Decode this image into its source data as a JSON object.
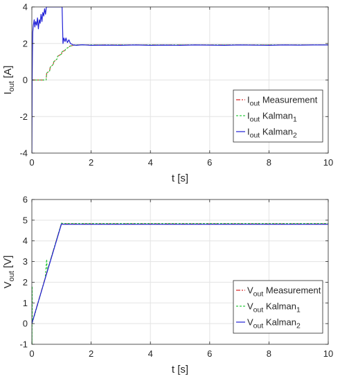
{
  "chart_data": [
    {
      "type": "line",
      "title": "",
      "xlabel": "t [s]",
      "ylabel": "I_out [A]",
      "xlim": [
        0,
        10
      ],
      "ylim": [
        -4,
        4
      ],
      "xticks": [
        0,
        2,
        4,
        6,
        8,
        10
      ],
      "yticks": [
        -4,
        -2,
        0,
        2,
        4
      ],
      "grid": true,
      "legend_position": "bottom-right",
      "series": [
        {
          "name": "I_out Measurement",
          "color": "#d62728",
          "dash": "6,2,2,2",
          "x": [
            0,
            0.48,
            0.5,
            0.6,
            0.62,
            0.72,
            0.74,
            0.85,
            0.87,
            1.0,
            1.02,
            1.12,
            1.14,
            1.25,
            1.28,
            1.4,
            1.45,
            2,
            3,
            4,
            5,
            6,
            7,
            8,
            9,
            10
          ],
          "y": [
            0,
            0,
            0.38,
            0.5,
            0.7,
            0.85,
            1.0,
            1.15,
            1.3,
            1.42,
            1.55,
            1.62,
            1.7,
            1.8,
            1.85,
            1.9,
            1.92,
            1.92,
            1.92,
            1.92,
            1.92,
            1.92,
            1.92,
            1.92,
            1.92,
            1.92
          ]
        },
        {
          "name": "I_out Kalman_1",
          "color": "#2ecc40",
          "dash": "3,2",
          "x": [
            0,
            0.48,
            0.5,
            0.6,
            0.62,
            0.72,
            0.74,
            0.85,
            0.87,
            1.0,
            1.02,
            1.12,
            1.14,
            1.25,
            1.28,
            1.4,
            1.45,
            2,
            3,
            4,
            5,
            6,
            7,
            8,
            9,
            10
          ],
          "y": [
            0,
            0,
            0.38,
            0.5,
            0.7,
            0.85,
            1.0,
            1.15,
            1.3,
            1.42,
            1.55,
            1.62,
            1.7,
            1.8,
            1.85,
            1.9,
            1.92,
            1.92,
            1.92,
            1.92,
            1.92,
            1.92,
            1.92,
            1.92,
            1.92,
            1.92
          ]
        },
        {
          "name": "I_out Kalman_2",
          "color": "#1f1fd6",
          "dash": "",
          "x": [
            0,
            0.01,
            0.02,
            0.03,
            0.05,
            0.08,
            0.1,
            0.13,
            0.16,
            0.19,
            0.22,
            0.25,
            0.28,
            0.31,
            0.34,
            0.37,
            0.4,
            0.43,
            0.46,
            0.49,
            0.52,
            1.02,
            1.05,
            1.08,
            1.12,
            1.15,
            1.2,
            1.25,
            1.3,
            1.4,
            1.5,
            1.7,
            2,
            2.5,
            3,
            3.5,
            4,
            4.5,
            5,
            5.5,
            6,
            6.5,
            7,
            7.5,
            8,
            8.5,
            9,
            9.5,
            10
          ],
          "y": [
            -4,
            0,
            1.5,
            2.6,
            3.0,
            3.3,
            2.9,
            3.2,
            3.0,
            3.4,
            2.8,
            3.3,
            3.1,
            3.6,
            3.2,
            3.7,
            3.5,
            3.9,
            3.6,
            4.0,
            4.0,
            4.0,
            2.0,
            2.3,
            2.1,
            2.3,
            2.05,
            2.2,
            2.0,
            1.92,
            1.9,
            1.93,
            1.9,
            1.91,
            1.9,
            1.92,
            1.9,
            1.91,
            1.9,
            1.92,
            1.91,
            1.9,
            1.92,
            1.91,
            1.9,
            1.92,
            1.91,
            1.92,
            1.92
          ]
        }
      ]
    },
    {
      "type": "line",
      "title": "",
      "xlabel": "t [s]",
      "ylabel": "V_out [V]",
      "xlim": [
        0,
        10
      ],
      "ylim": [
        -1,
        6
      ],
      "xticks": [
        0,
        2,
        4,
        6,
        8,
        10
      ],
      "yticks": [
        -1,
        0,
        1,
        2,
        3,
        4,
        5,
        6
      ],
      "grid": true,
      "legend_position": "bottom-right",
      "series": [
        {
          "name": "V_out Measurement",
          "color": "#d62728",
          "dash": "6,2,2,2",
          "x": [
            0,
            0.5,
            1.0,
            1.05,
            2,
            4,
            6,
            8,
            10
          ],
          "y": [
            0,
            2.45,
            4.85,
            4.82,
            4.82,
            4.82,
            4.82,
            4.82,
            4.82
          ]
        },
        {
          "name": "V_out Kalman_1",
          "color": "#2ecc40",
          "dash": "3,2",
          "x": [
            0,
            0.005,
            0.01,
            0.015,
            0.1,
            0.45,
            0.5,
            0.52,
            0.55,
            1.0,
            1.05,
            2,
            4,
            6,
            8,
            10
          ],
          "y": [
            0,
            -1,
            1.8,
            0.05,
            0.45,
            2.2,
            3.1,
            2.5,
            2.7,
            4.86,
            4.84,
            4.84,
            4.84,
            4.84,
            4.84,
            4.84
          ]
        },
        {
          "name": "V_out Kalman_2",
          "color": "#1f1fd6",
          "dash": "",
          "x": [
            0,
            0.5,
            1.0,
            1.05,
            2,
            4,
            6,
            8,
            10
          ],
          "y": [
            0,
            2.42,
            4.82,
            4.8,
            4.8,
            4.8,
            4.8,
            4.8,
            4.8
          ]
        }
      ]
    }
  ],
  "legend_parts": [
    [
      {
        "main": "I",
        "sub": "out",
        "label": "Measurement",
        "tail": ""
      },
      {
        "main": "I",
        "sub": "out",
        "label": "Kalman",
        "tail": "1"
      },
      {
        "main": "I",
        "sub": "out",
        "label": "Kalman",
        "tail": "2"
      }
    ],
    [
      {
        "main": "V",
        "sub": "out",
        "label": "Measurement",
        "tail": ""
      },
      {
        "main": "V",
        "sub": "out",
        "label": "Kalman",
        "tail": "1"
      },
      {
        "main": "V",
        "sub": "out",
        "label": "Kalman",
        "tail": "2"
      }
    ]
  ],
  "ylabel_parts": [
    {
      "main": "I",
      "sub": "out",
      "unit": "[A]"
    },
    {
      "main": "V",
      "sub": "out",
      "unit": "[V]"
    }
  ]
}
